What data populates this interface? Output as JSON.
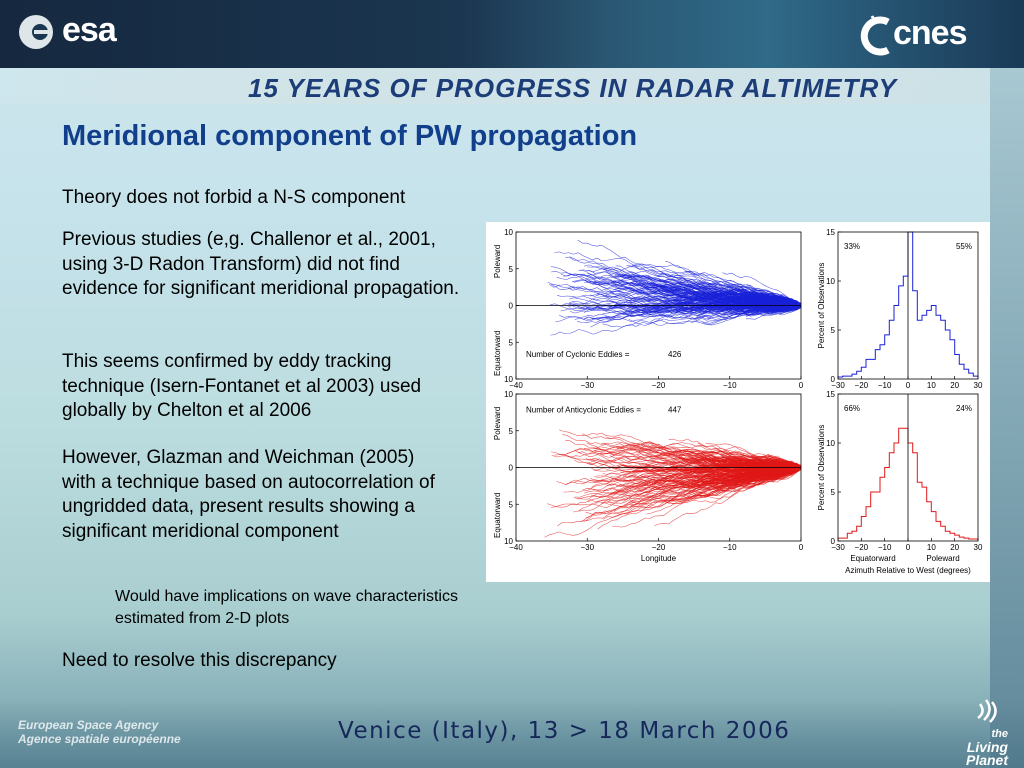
{
  "header": {
    "left_logo": "esa",
    "right_logo": "cnes",
    "conference_title": "15 YEARS OF PROGRESS IN RADAR ALTIMETRY"
  },
  "slide": {
    "title": "Meridional component of PW propagation",
    "paragraphs": [
      "Theory does not forbid a N-S component",
      "Previous studies (e,g. Challenor et al., 2001, using 3-D Radon Transform) did not find evidence for significant meridional propagation.",
      "This seems confirmed by eddy tracking technique (Isern-Fontanet et al 2003) used globally by Chelton et al 2006",
      "However, Glazman and Weichman (2005) with a technique based on autocorrelation of ungridded data, present results showing a significant meridional component"
    ],
    "sub_paragraph": "Would have implications on wave characteristics estimated from 2-D plots",
    "last_paragraph": "Need to resolve this discrepancy"
  },
  "footer": {
    "date": "Venice (Italy), 13 > 18 March 2006",
    "agency_en": "European Space Agency",
    "agency_fr": "Agence spatiale européenne",
    "brand_small": "the",
    "brand": "Living Planet"
  },
  "chart_data": [
    {
      "type": "line",
      "panel": "top-left",
      "annotation": "Number of Cyclonic Eddies =",
      "count": "426",
      "color": "#1a22d8",
      "xlim": [
        -40,
        0
      ],
      "ylim": [
        -10,
        10
      ],
      "xticks": [
        "−40",
        "−30",
        "−20",
        "−10",
        "0"
      ],
      "yticks": [
        "10",
        "5",
        "0",
        "5",
        "10"
      ],
      "ylabel_top": "Poleward",
      "ylabel_bottom": "Equatorward"
    },
    {
      "type": "line",
      "panel": "bottom-left",
      "annotation": "Number of Anticyclonic Eddies =",
      "count": "447",
      "color": "#e01818",
      "xlim": [
        -40,
        0
      ],
      "ylim": [
        -10,
        10
      ],
      "xticks": [
        "−40",
        "−30",
        "−20",
        "−10",
        "0"
      ],
      "yticks": [
        "10",
        "5",
        "0",
        "5",
        "10"
      ],
      "xlabel": "Longitude",
      "ylabel_top": "Poleward",
      "ylabel_bottom": "Equatorward"
    },
    {
      "type": "bar",
      "panel": "top-right",
      "ylabel": "Percent of Observations",
      "color": "#1a22d8",
      "left_pct": "33%",
      "right_pct": "55%",
      "xlim": [
        -30,
        30
      ],
      "ylim": [
        0,
        15
      ],
      "xticks": [
        "−30",
        "−20",
        "−10",
        "0",
        "10",
        "20",
        "30"
      ],
      "yticks": [
        "15",
        "10",
        "5",
        "0"
      ],
      "bin_centers": [
        -29,
        -27,
        -25,
        -23,
        -21,
        -19,
        -17,
        -15,
        -13,
        -11,
        -9,
        -7,
        -5,
        -3,
        -1,
        1,
        3,
        5,
        7,
        9,
        11,
        13,
        15,
        17,
        19,
        21,
        23,
        25,
        27,
        29
      ],
      "values": [
        0.2,
        0.3,
        0.3,
        0.5,
        0.8,
        1.2,
        2,
        2,
        3,
        3.5,
        4.5,
        6,
        7.5,
        9.5,
        10.5,
        15,
        9,
        6,
        6.5,
        7,
        7.5,
        6.5,
        6,
        5,
        4,
        2.5,
        1.5,
        1,
        0.6,
        0.3
      ]
    },
    {
      "type": "bar",
      "panel": "bottom-right",
      "ylabel": "Percent of Observations",
      "color": "#e01818",
      "left_pct": "66%",
      "right_pct": "24%",
      "xlim": [
        -30,
        30
      ],
      "ylim": [
        0,
        15
      ],
      "xticks": [
        "−30",
        "−20",
        "−10",
        "0",
        "10",
        "20",
        "30"
      ],
      "yticks": [
        "15",
        "10",
        "5",
        "0"
      ],
      "xlabel_left": "Equatorward",
      "xlabel_right": "Poleward",
      "xlabel": "Azimuth Relative to West (degrees)",
      "bin_centers": [
        -29,
        -27,
        -25,
        -23,
        -21,
        -19,
        -17,
        -15,
        -13,
        -11,
        -9,
        -7,
        -5,
        -3,
        -1,
        1,
        3,
        5,
        7,
        9,
        11,
        13,
        15,
        17,
        19,
        21,
        23,
        25,
        27,
        29
      ],
      "values": [
        0.3,
        0.3,
        0.8,
        1,
        1.5,
        2.5,
        3.5,
        5,
        5,
        6.5,
        7.5,
        9,
        10,
        11.5,
        11.5,
        10,
        9,
        6,
        5.5,
        4,
        3,
        2,
        1.5,
        1,
        0.8,
        0.6,
        0.4,
        0.3,
        0.2,
        0.2
      ]
    }
  ]
}
